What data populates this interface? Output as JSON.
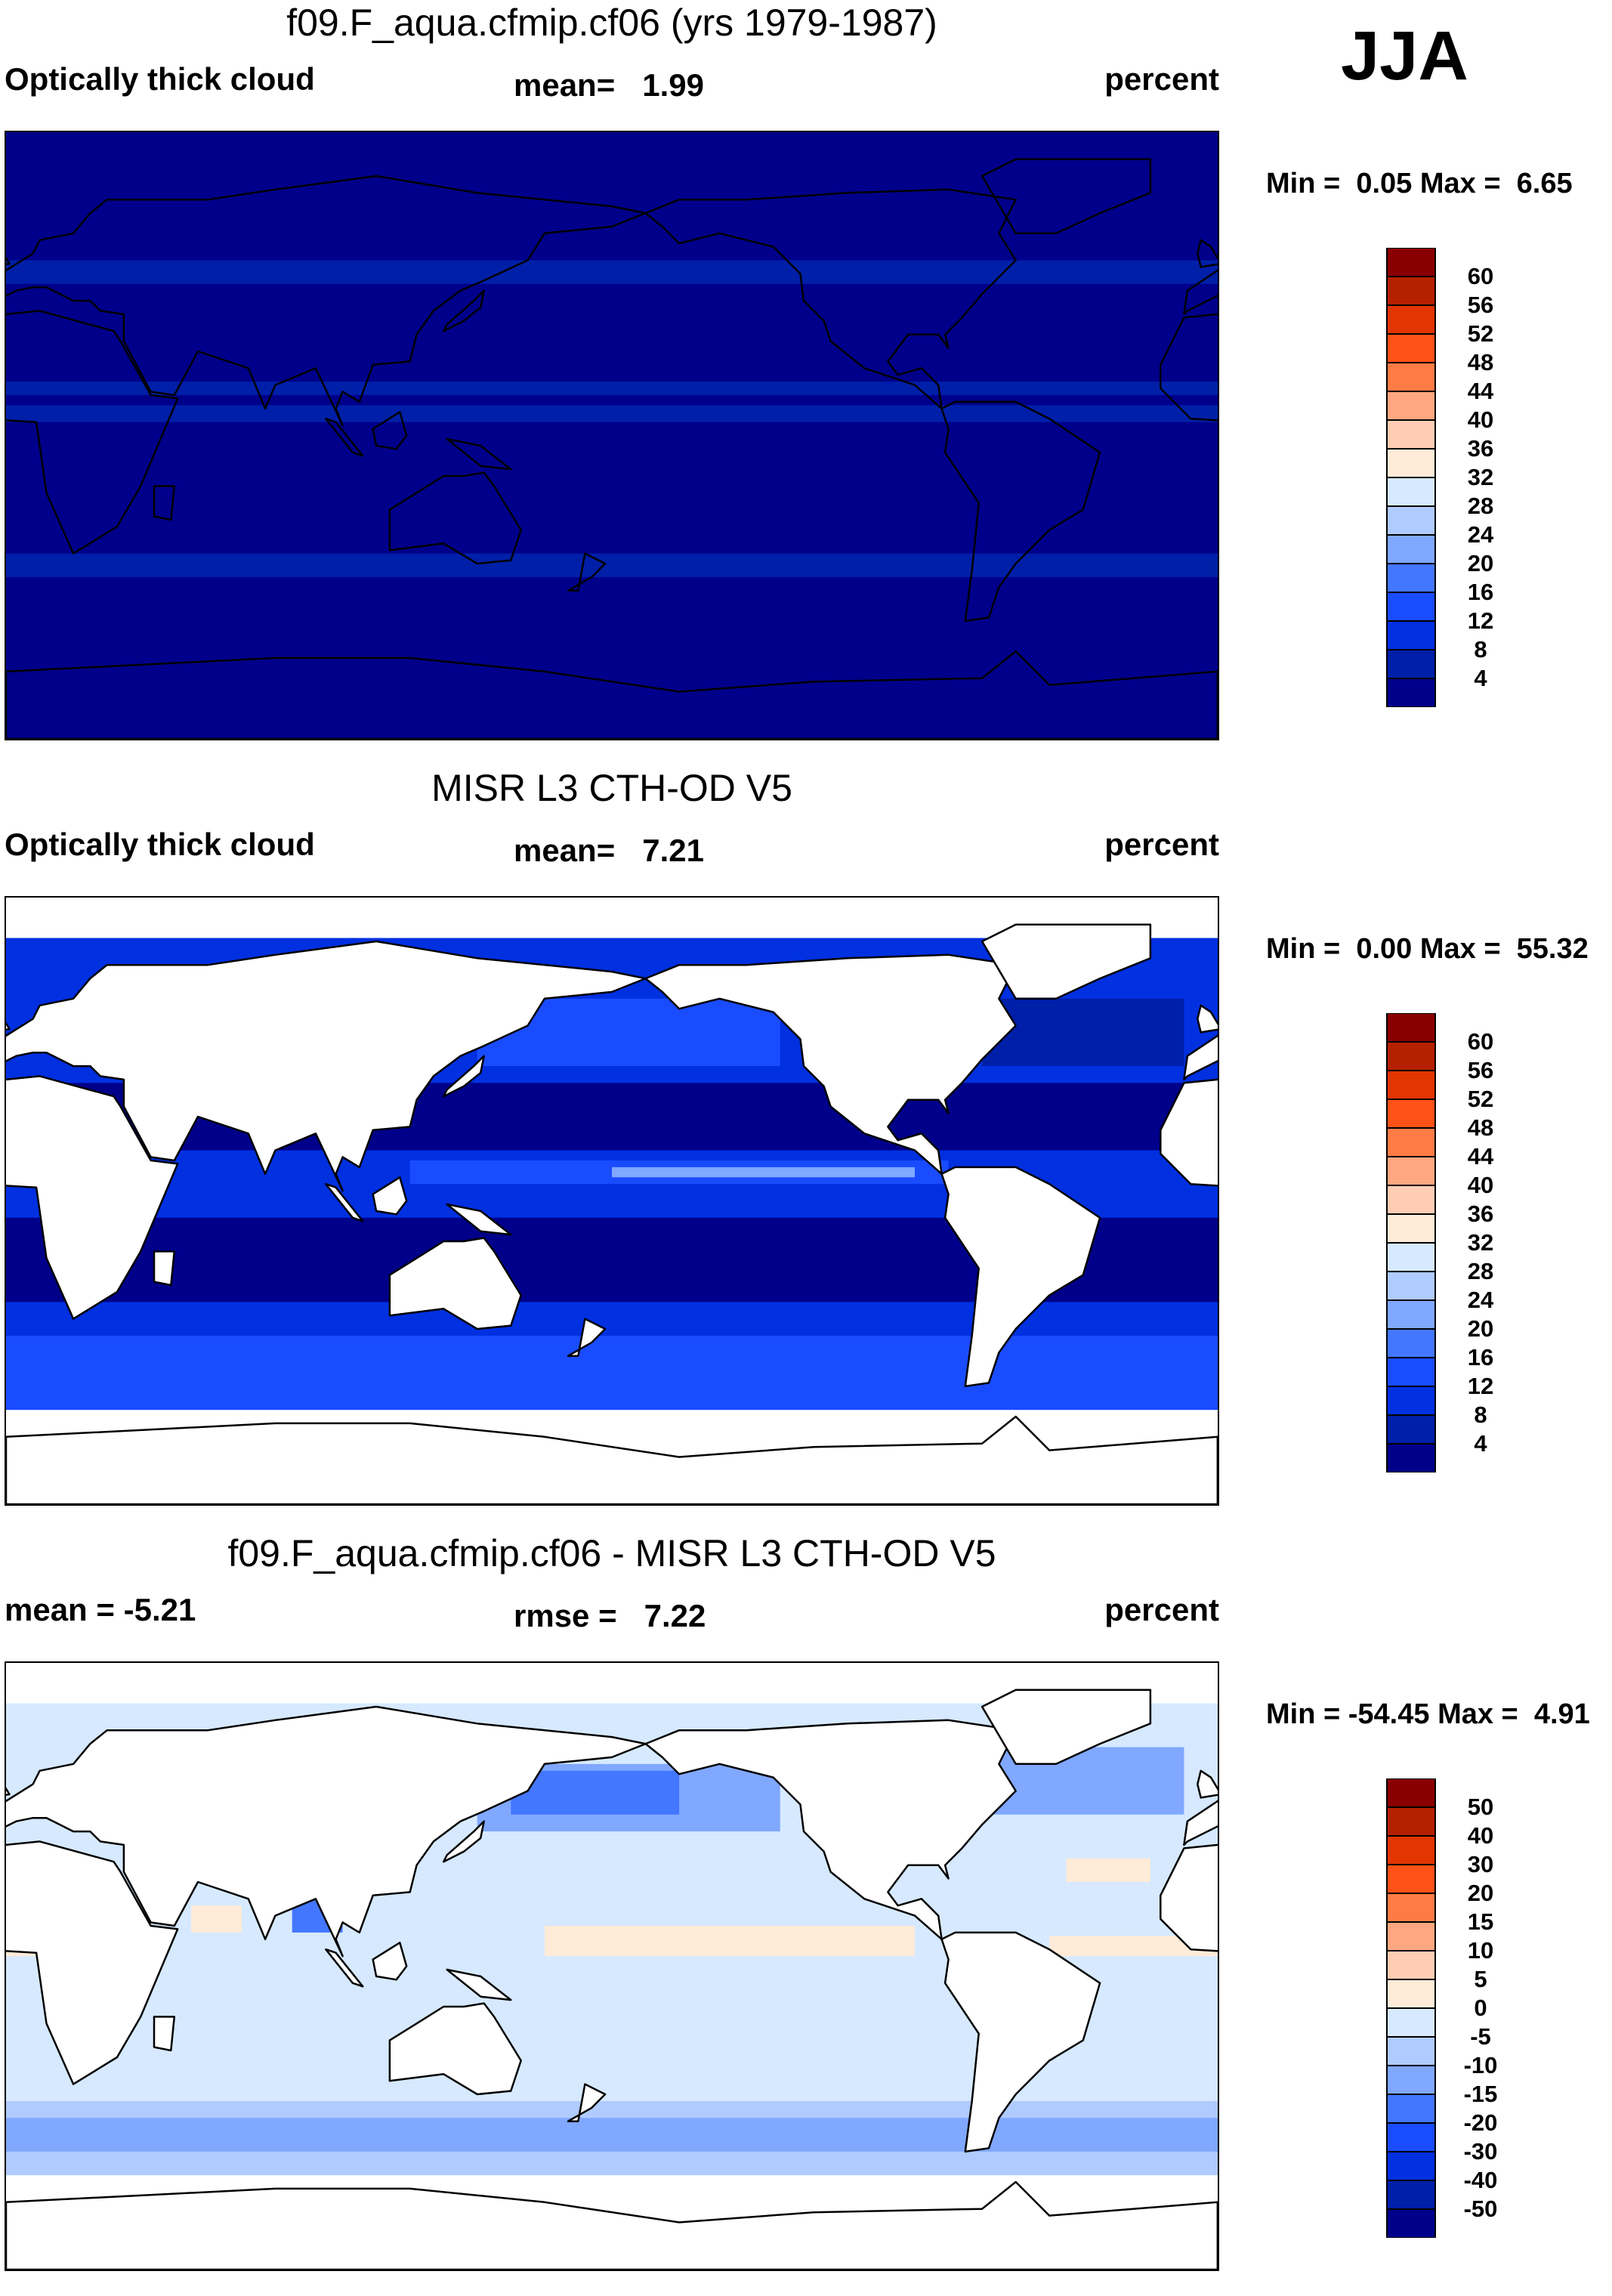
{
  "season_label": "JJA",
  "chart_data": [
    {
      "type": "heatmap",
      "title": "f09.F_aqua.cfmip.cf06 (yrs 1979-1987)",
      "left_label": "Optically thick cloud",
      "center_label": "mean=",
      "center_value": "1.99",
      "units": "percent",
      "min_label": "Min =",
      "min_value": "0.05",
      "max_label": "Max =",
      "max_value": "6.65",
      "levels": [
        "60",
        "56",
        "52",
        "48",
        "44",
        "40",
        "36",
        "32",
        "28",
        "24",
        "20",
        "16",
        "12",
        "8",
        "4"
      ],
      "colors": [
        "#8a0000",
        "#b52100",
        "#e33500",
        "#ff5219",
        "#ff7b45",
        "#ffa780",
        "#ffcdb4",
        "#ffebd8",
        "#d6e9ff",
        "#b0cbff",
        "#80a8ff",
        "#4477ff",
        "#1a4cff",
        "#0030e0",
        "#001fa8",
        "#00008a"
      ],
      "xlim": [
        0,
        360
      ],
      "ylim": [
        -90,
        90
      ]
    },
    {
      "type": "heatmap",
      "title": "MISR L3 CTH-OD V5",
      "left_label": "Optically thick cloud",
      "center_label": "mean=",
      "center_value": "7.21",
      "units": "percent",
      "min_label": "Min =",
      "min_value": "0.00",
      "max_label": "Max =",
      "max_value": "55.32",
      "levels": [
        "60",
        "56",
        "52",
        "48",
        "44",
        "40",
        "36",
        "32",
        "28",
        "24",
        "20",
        "16",
        "12",
        "8",
        "4"
      ],
      "colors": [
        "#8a0000",
        "#b52100",
        "#e33500",
        "#ff5219",
        "#ff7b45",
        "#ffa780",
        "#ffcdb4",
        "#ffebd8",
        "#d6e9ff",
        "#b0cbff",
        "#80a8ff",
        "#4477ff",
        "#1a4cff",
        "#0030e0",
        "#001fa8",
        "#00008a"
      ],
      "xlim": [
        0,
        360
      ],
      "ylim": [
        -90,
        90
      ]
    },
    {
      "type": "heatmap",
      "title": "f09.F_aqua.cfmip.cf06 - MISR L3 CTH-OD V5",
      "left_label": "mean =",
      "left_value": "-5.21",
      "center_label": "rmse =",
      "center_value": "7.22",
      "units": "percent",
      "min_label": "Min =",
      "min_value": "-54.45",
      "max_label": "Max =",
      "max_value": "4.91",
      "levels": [
        "50",
        "40",
        "30",
        "20",
        "15",
        "10",
        "5",
        "0",
        "-5",
        "-10",
        "-15",
        "-20",
        "-30",
        "-40",
        "-50"
      ],
      "colors": [
        "#8a0000",
        "#b52100",
        "#e33500",
        "#ff5219",
        "#ff7b45",
        "#ffa780",
        "#ffcdb4",
        "#ffebd8",
        "#d6e9ff",
        "#b0cbff",
        "#80a8ff",
        "#4477ff",
        "#1a4cff",
        "#0030e0",
        "#001fa8",
        "#00008a"
      ],
      "xlim": [
        0,
        360
      ],
      "ylim": [
        -90,
        90
      ]
    }
  ]
}
